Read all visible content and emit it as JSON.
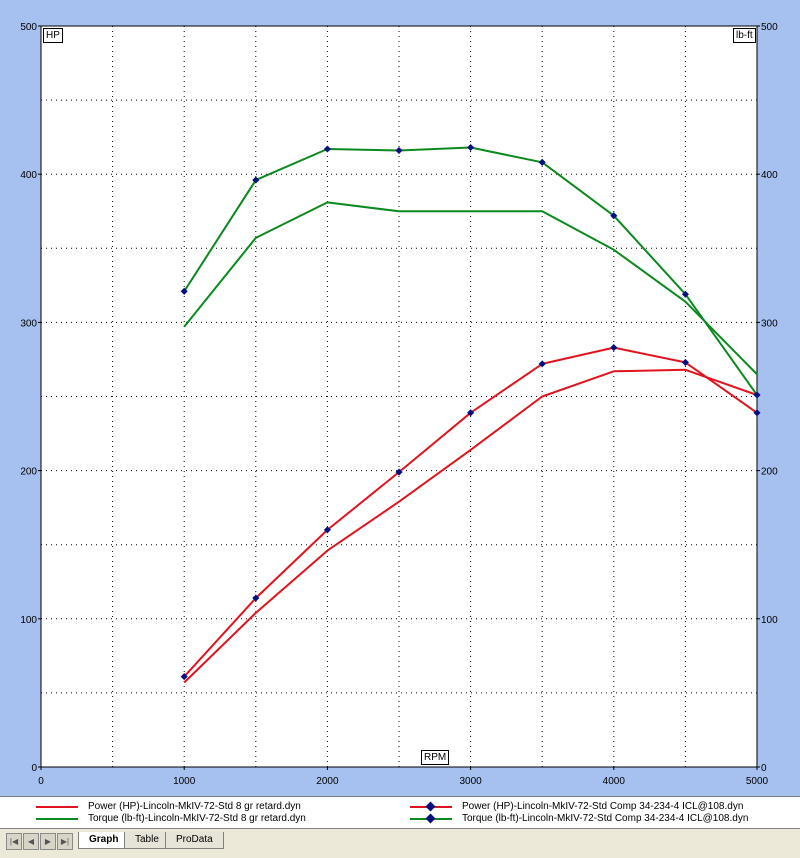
{
  "chart_data": {
    "type": "line",
    "x_label": "RPM",
    "y_left_label": "HP",
    "y_right_label": "lb-ft",
    "xlim": [
      0,
      5000
    ],
    "ylim": [
      0,
      500
    ],
    "x_ticks": [
      0,
      1000,
      2000,
      3000,
      4000,
      5000
    ],
    "x_tick_labels": [
      "0",
      "1000",
      "2000",
      "3000",
      "4000",
      "5000"
    ],
    "y_ticks": [
      0,
      100,
      200,
      300,
      400,
      500
    ],
    "y_tick_labels": [
      "0",
      "100",
      "200",
      "300",
      "400",
      "500"
    ],
    "grid": true,
    "x": [
      1000,
      1500,
      2000,
      2500,
      3000,
      3500,
      4000,
      4500,
      5000
    ],
    "series": [
      {
        "name": "Power (HP)-Lincoln-MkIV-72-Std 8 gr retard.dyn",
        "color": "#e0141e",
        "markers": false,
        "values": [
          57,
          104,
          146,
          179,
          214,
          250,
          267,
          268,
          251
        ]
      },
      {
        "name": "Torque (lb-ft)-Lincoln-MkIV-72-Std 8 gr retard.dyn",
        "color": "#0a8a1e",
        "markers": false,
        "values": [
          297,
          357,
          381,
          375,
          375,
          375,
          349,
          314,
          265
        ]
      },
      {
        "name": "Power (HP)-Lincoln-MkIV-72-Std Comp 34-234-4 ICL@108.dyn",
        "color": "#e0141e",
        "markers": true,
        "values": [
          61,
          114,
          160,
          199,
          239,
          272,
          283,
          273,
          239
        ]
      },
      {
        "name": "Torque (lb-ft)-Lincoln-MkIV-72-Std Comp 34-234-4 ICL@108.dyn",
        "color": "#0a8a1e",
        "markers": true,
        "values": [
          321,
          396,
          417,
          416,
          418,
          408,
          372,
          319,
          251
        ]
      }
    ]
  },
  "tabs": {
    "graph": "Graph",
    "table": "Table",
    "prodata": "ProData",
    "active": "graph"
  },
  "nav_buttons": [
    "first",
    "prev",
    "next",
    "last"
  ]
}
